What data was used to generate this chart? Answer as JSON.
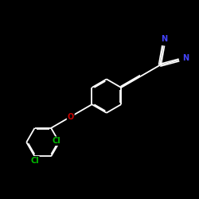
{
  "background_color": "#000000",
  "bond_color": "#ffffff",
  "atom_colors": {
    "N": "#4444ff",
    "O": "#cc0000",
    "Cl": "#00bb00",
    "C": "#ffffff"
  },
  "figsize": [
    2.5,
    2.5
  ],
  "dpi": 100
}
